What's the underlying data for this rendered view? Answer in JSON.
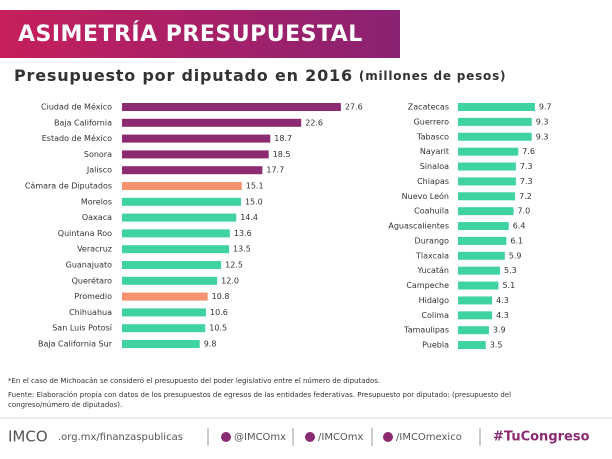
{
  "header": {
    "title": "ASIMETRÍA PRESUPUESTAL",
    "subtitle": "Presupuesto por diputado en 2016",
    "subtitle_unit": "(millones de pesos)"
  },
  "chart_data": [
    {
      "type": "bar",
      "orientation": "horizontal",
      "categories": [
        "Ciudad de México",
        "Baja California",
        "Estado de México",
        "Sonora",
        "Jalisco",
        "Cámara de Diputados",
        "Morelos",
        "Oaxaca",
        "Quintana Roo",
        "Veracruz",
        "Guanajuato",
        "Querétaro",
        "Promedio",
        "Chihuahua",
        "San Luis Potosí",
        "Baja California Sur"
      ],
      "values": [
        27.6,
        22.6,
        18.7,
        18.5,
        17.7,
        15.1,
        15,
        14.4,
        13.6,
        13.5,
        12.5,
        12,
        10.8,
        10.6,
        10.5,
        9.8
      ],
      "value_labels": [
        "27.6",
        "22.6",
        "18.7",
        "18.5",
        "17.7",
        "15.1",
        "15.0",
        "14.4",
        "13.6",
        "13.5",
        "12.5",
        "12.0",
        "10.8",
        "10.6",
        "10.5",
        "9.8"
      ],
      "colors": [
        "#8c2a72",
        "#8c2a72",
        "#8c2a72",
        "#8c2a72",
        "#8c2a72",
        "#f59270",
        "#3fd3a0",
        "#3fd3a0",
        "#3fd3a0",
        "#3fd3a0",
        "#3fd3a0",
        "#3fd3a0",
        "#f59270",
        "#3fd3a0",
        "#3fd3a0",
        "#3fd3a0"
      ]
    },
    {
      "type": "bar",
      "orientation": "horizontal",
      "categories": [
        "Zacatecas",
        "Guerrero",
        "Tabasco",
        "Nayarit",
        "Sinaloa",
        "Chiapas",
        "Nuevo León",
        "Coahuila",
        "Aguascalientes",
        "Durango",
        "Tlaxcala",
        "Yucatán",
        "Campeche",
        "Hidalgo",
        "Colima",
        "Tamaulipas",
        "Puebla"
      ],
      "values": [
        9.7,
        9.3,
        9.3,
        7.6,
        7.3,
        7.3,
        7.2,
        7,
        6.4,
        6.1,
        5.9,
        5.3,
        5.1,
        4.3,
        4.3,
        3.9,
        3.5
      ],
      "value_labels": [
        "9.7",
        "9.3",
        "9.3",
        "7.6",
        "7.3",
        "7.3",
        "7.2",
        "7.0",
        "6.4",
        "6.1",
        "5.9",
        "5.3",
        "5.1",
        "4.3",
        "4.3",
        "3.9",
        "3.5"
      ],
      "color": "#3fd3a0"
    }
  ],
  "notes": [
    "*En el caso de Michoacán se consideró el presupuesto del poder legislativo entre el número de diputados.",
    "Fuente: Elaboración propia con datos de los presupuestos de egresos de las entidades federativas. Presupuesto por diputado: (presupuesto del",
    "congreso/número de diputados)."
  ],
  "footer": {
    "logo": "IMCO",
    "site": ".org.mx/finanzaspublicas",
    "twitter": "@IMCOmx",
    "facebook": "/IMCOmx",
    "youtube": "/IMCOmexico",
    "hashtag": "#TuCongreso"
  }
}
